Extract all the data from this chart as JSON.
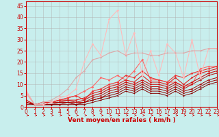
{
  "title": "",
  "xlabel": "Vent moyen/en rafales ( km/h )",
  "ylabel": "",
  "background_color": "#c8eeed",
  "grid_color": "#b0b0b0",
  "x_values": [
    0,
    1,
    2,
    3,
    4,
    5,
    6,
    7,
    8,
    9,
    10,
    11,
    12,
    13,
    14,
    15,
    16,
    17,
    18,
    19,
    20,
    21,
    22,
    23
  ],
  "series": [
    {
      "y": [
        7,
        1,
        1,
        2,
        3,
        4,
        5,
        7,
        9,
        13,
        12,
        14,
        12,
        16,
        21,
        12,
        12,
        11,
        11,
        9,
        10,
        17,
        18,
        18
      ],
      "color": "#ff6666",
      "linewidth": 0.8,
      "marker": "D",
      "markersize": 1.8
    },
    {
      "y": [
        3,
        1,
        2,
        2,
        3,
        4,
        5,
        3,
        7,
        8,
        10,
        11,
        14,
        13,
        16,
        13,
        12,
        11,
        14,
        13,
        15,
        16,
        17,
        18
      ],
      "color": "#ee3333",
      "linewidth": 0.8,
      "marker": "D",
      "markersize": 1.8
    },
    {
      "y": [
        3,
        1,
        2,
        2,
        3,
        3,
        3,
        4,
        6,
        7,
        9,
        10,
        12,
        11,
        14,
        11,
        11,
        10,
        13,
        10,
        13,
        15,
        16,
        17
      ],
      "color": "#dd2222",
      "linewidth": 0.8,
      "marker": "D",
      "markersize": 1.6
    },
    {
      "y": [
        2,
        1,
        1,
        2,
        2,
        3,
        2,
        3,
        5,
        6,
        8,
        9,
        11,
        10,
        12,
        10,
        10,
        9,
        11,
        9,
        11,
        13,
        15,
        16
      ],
      "color": "#cc1111",
      "linewidth": 0.8,
      "marker": "D",
      "markersize": 1.6
    },
    {
      "y": [
        2,
        1,
        1,
        2,
        2,
        2,
        2,
        2,
        4,
        5,
        7,
        8,
        10,
        9,
        11,
        9,
        9,
        8,
        10,
        8,
        10,
        12,
        14,
        15
      ],
      "color": "#bb1111",
      "linewidth": 0.7,
      "marker": "D",
      "markersize": 1.4
    },
    {
      "y": [
        2,
        1,
        1,
        1,
        2,
        2,
        1,
        2,
        3,
        4,
        6,
        7,
        9,
        8,
        10,
        8,
        8,
        7,
        9,
        7,
        8,
        10,
        12,
        13
      ],
      "color": "#aa0000",
      "linewidth": 0.7,
      "marker": "D",
      "markersize": 1.4
    },
    {
      "y": [
        2,
        1,
        1,
        1,
        1,
        2,
        1,
        2,
        3,
        4,
        5,
        6,
        8,
        7,
        9,
        7,
        7,
        6,
        8,
        6,
        7,
        9,
        11,
        12
      ],
      "color": "#990000",
      "linewidth": 0.7,
      "marker": "D",
      "markersize": 1.2
    },
    {
      "y": [
        1,
        1,
        1,
        1,
        1,
        1,
        1,
        1,
        2,
        3,
        4,
        5,
        7,
        6,
        8,
        6,
        6,
        5,
        7,
        5,
        6,
        8,
        10,
        11
      ],
      "color": "#880000",
      "linewidth": 0.7,
      "marker": "D",
      "markersize": 1.2
    },
    {
      "y": [
        7,
        1,
        1,
        2,
        4,
        5,
        8,
        20,
        28,
        23,
        39,
        43,
        23,
        33,
        14,
        25,
        14,
        28,
        24,
        13,
        30,
        13,
        26,
        26
      ],
      "color": "#ffbbbb",
      "linewidth": 0.8,
      "marker": "D",
      "markersize": 1.8
    },
    {
      "y": [
        6,
        1,
        2,
        3,
        5,
        8,
        13,
        16,
        21,
        22,
        24,
        25,
        23,
        24,
        24,
        23,
        23,
        24,
        24,
        24,
        25,
        25,
        26,
        26
      ],
      "color": "#ddaaaa",
      "linewidth": 0.8,
      "marker": "D",
      "markersize": 1.5
    }
  ],
  "xlim": [
    0,
    23
  ],
  "ylim": [
    0,
    47
  ],
  "yticks": [
    0,
    5,
    10,
    15,
    20,
    25,
    30,
    35,
    40,
    45
  ],
  "xticks": [
    0,
    1,
    2,
    3,
    4,
    5,
    6,
    7,
    8,
    9,
    10,
    11,
    12,
    13,
    14,
    15,
    16,
    17,
    18,
    19,
    20,
    21,
    22,
    23
  ],
  "tick_color": "#cc0000",
  "label_fontsize": 6.5,
  "tick_fontsize": 5.5
}
